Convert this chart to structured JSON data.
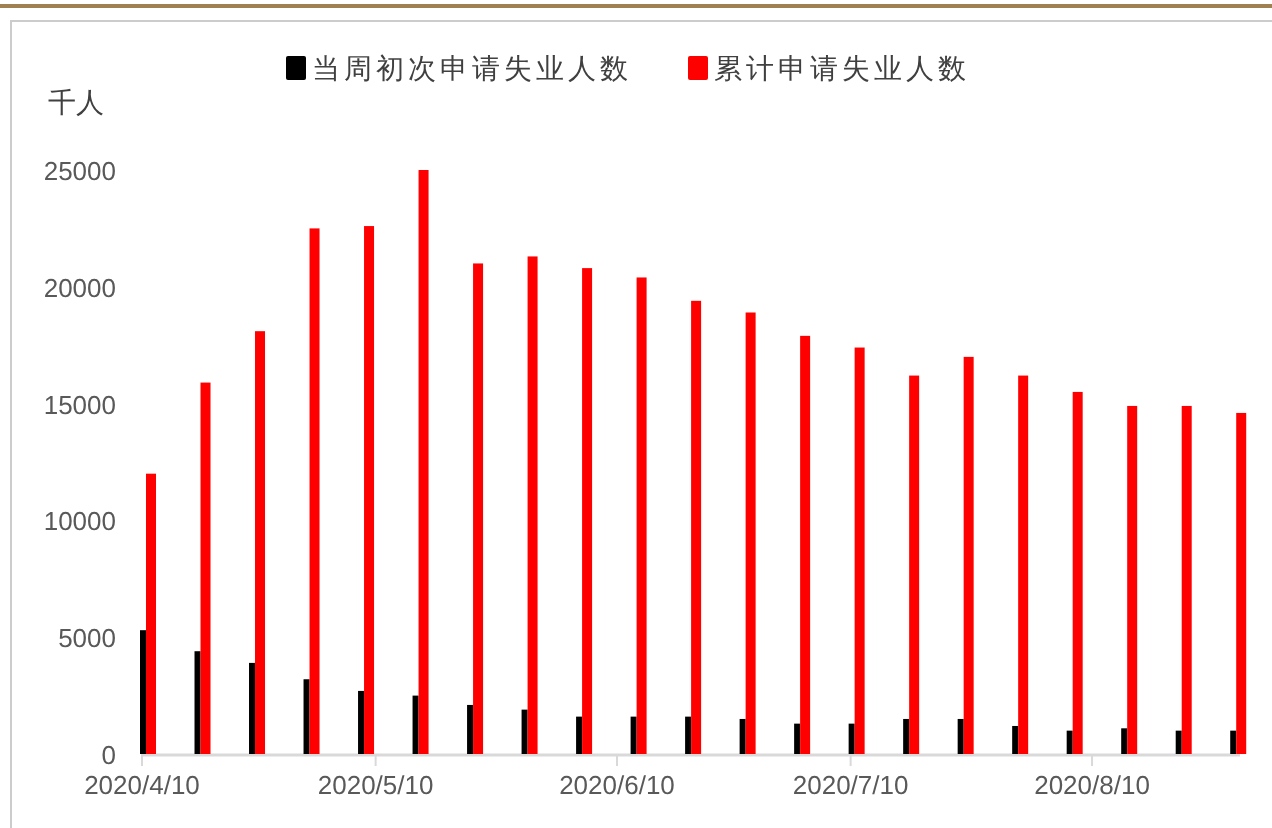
{
  "chart_data": {
    "type": "bar",
    "ylabel": "千人",
    "legend": "top",
    "x": [
      "2020-04-10",
      "2020-04-17",
      "2020-04-24",
      "2020-05-01",
      "2020-05-08",
      "2020-05-15",
      "2020-05-22",
      "2020-05-29",
      "2020-06-05",
      "2020-06-12",
      "2020-06-19",
      "2020-06-26",
      "2020-07-03",
      "2020-07-10",
      "2020-07-17",
      "2020-07-24",
      "2020-07-31",
      "2020-08-07",
      "2020-08-14",
      "2020-08-21",
      "2020-08-28"
    ],
    "series": [
      {
        "name": "当周初次申请失业人数",
        "color": "#000000",
        "values": [
          5300,
          4400,
          3900,
          3200,
          2700,
          2500,
          2100,
          1900,
          1600,
          1600,
          1600,
          1500,
          1300,
          1300,
          1500,
          1500,
          1200,
          1000,
          1100,
          1000,
          1000
        ]
      },
      {
        "name": "累计申请失业人数",
        "color": "#ff0000",
        "values": [
          12000,
          15900,
          18100,
          22500,
          22600,
          25000,
          21000,
          21300,
          20800,
          20400,
          19400,
          18900,
          17900,
          17400,
          16200,
          17000,
          16200,
          15500,
          14900,
          14900,
          14600
        ]
      }
    ],
    "xlim": [
      "2020-04-10",
      "2020-08-29"
    ],
    "xticks": [
      {
        "value": "2020-04-10",
        "label": "2020/4/10"
      },
      {
        "value": "2020-05-10",
        "label": "2020/5/10"
      },
      {
        "value": "2020-06-10",
        "label": "2020/6/10"
      },
      {
        "value": "2020-07-10",
        "label": "2020/7/10"
      },
      {
        "value": "2020-08-10",
        "label": "2020/8/10"
      }
    ],
    "ylim": [
      0,
      25000
    ],
    "yticks": [
      0,
      5000,
      10000,
      15000,
      20000,
      25000
    ],
    "grid": false
  }
}
